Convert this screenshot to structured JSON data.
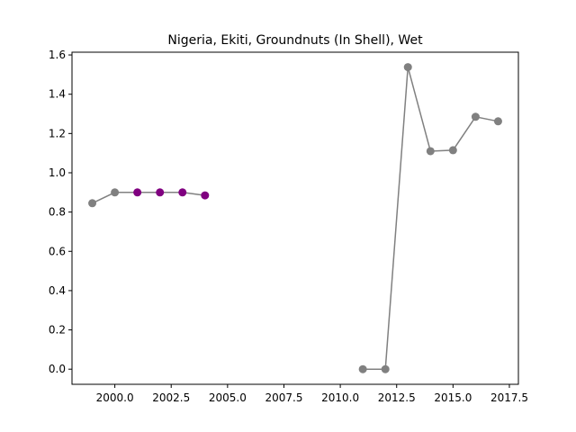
{
  "chart_data": {
    "type": "line",
    "title": "Nigeria, Ekiti, Groundnuts (In Shell), Wet",
    "xlabel": "",
    "ylabel": "",
    "xlim": [
      1998.1,
      2017.9
    ],
    "ylim": [
      -0.077,
      1.614
    ],
    "x_ticks": [
      2000.0,
      2002.5,
      2005.0,
      2007.5,
      2010.0,
      2012.5,
      2015.0,
      2017.5
    ],
    "x_tick_labels": [
      "2000.0",
      "2002.5",
      "2005.0",
      "2007.5",
      "2010.0",
      "2012.5",
      "2015.0",
      "2017.5"
    ],
    "y_ticks": [
      0.0,
      0.2,
      0.4,
      0.6,
      0.8,
      1.0,
      1.2,
      1.4,
      1.6
    ],
    "y_tick_labels": [
      "0.0",
      "0.2",
      "0.4",
      "0.6",
      "0.8",
      "1.0",
      "1.2",
      "1.4",
      "1.6"
    ],
    "grid": false,
    "line_color": "#808080",
    "segments": [
      {
        "x": [
          1999,
          2000,
          2001,
          2002,
          2003,
          2004
        ],
        "y": [
          0.845,
          0.9,
          0.9,
          0.9,
          0.9,
          0.885
        ]
      },
      {
        "x": [
          2011,
          2012,
          2013,
          2014,
          2015,
          2016,
          2017
        ],
        "y": [
          0.0,
          0.0,
          1.538,
          1.11,
          1.115,
          1.285,
          1.262
        ]
      }
    ],
    "points": [
      {
        "x": 1999,
        "y": 0.845,
        "color": "#808080"
      },
      {
        "x": 2000,
        "y": 0.9,
        "color": "#808080"
      },
      {
        "x": 2001,
        "y": 0.9,
        "color": "#800080"
      },
      {
        "x": 2002,
        "y": 0.9,
        "color": "#800080"
      },
      {
        "x": 2003,
        "y": 0.9,
        "color": "#800080"
      },
      {
        "x": 2004,
        "y": 0.885,
        "color": "#800080"
      },
      {
        "x": 2011,
        "y": 0.0,
        "color": "#808080"
      },
      {
        "x": 2012,
        "y": 0.0,
        "color": "#808080"
      },
      {
        "x": 2013,
        "y": 1.538,
        "color": "#808080"
      },
      {
        "x": 2014,
        "y": 1.11,
        "color": "#808080"
      },
      {
        "x": 2015,
        "y": 1.115,
        "color": "#808080"
      },
      {
        "x": 2016,
        "y": 1.285,
        "color": "#808080"
      },
      {
        "x": 2017,
        "y": 1.262,
        "color": "#808080"
      }
    ]
  }
}
